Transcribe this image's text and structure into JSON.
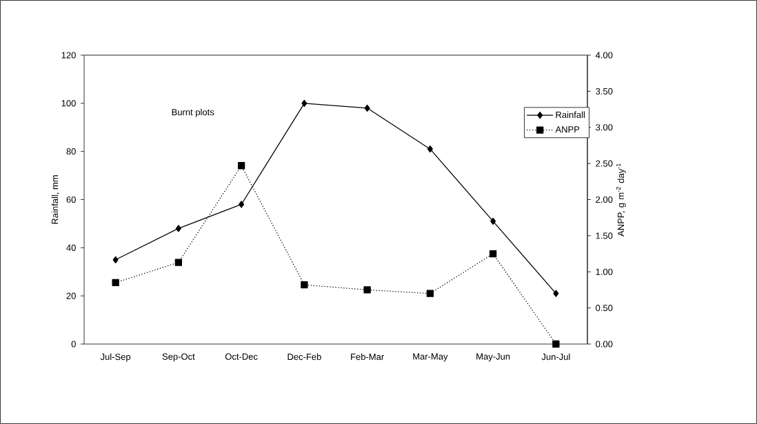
{
  "chart_data": {
    "type": "line",
    "categories": [
      "Jul-Sep",
      "Sep-Oct",
      "Oct-Dec",
      "Dec-Feb",
      "Feb-Mar",
      "Mar-May",
      "May-Jun",
      "Jun-Jul"
    ],
    "series": [
      {
        "name": "Rainfall",
        "color": "#000000",
        "marker": "diamond",
        "line_style": "solid",
        "values": [
          35,
          48,
          58,
          100,
          98,
          81,
          51,
          21
        ]
      },
      {
        "name": "ANPP",
        "color": "#000000",
        "marker": "square",
        "line_style": "dotted",
        "axis": "y2",
        "values": [
          0.85,
          1.13,
          2.47,
          0.82,
          0.75,
          0.7,
          1.25,
          0.0
        ]
      }
    ],
    "ylabel": "Rainfall, mm",
    "y2label": "ANPP, g m$^{-2}$ day$^{-1}$",
    "ylim": [
      0,
      120
    ],
    "yticks": [
      0,
      20,
      40,
      60,
      80,
      100,
      120
    ],
    "y2lim": [
      0,
      4
    ],
    "y2ticks": [
      {
        "value": 0,
        "label": "0.00"
      },
      {
        "value": 0.5,
        "label": "0.50"
      },
      {
        "value": 1,
        "label": "1.00"
      },
      {
        "value": 1.5,
        "label": "1.50"
      },
      {
        "value": 2,
        "label": "2.00"
      },
      {
        "value": 2.5,
        "label": "2.50"
      },
      {
        "value": 3,
        "label": "3.00"
      },
      {
        "value": 3.5,
        "label": "3.50"
      },
      {
        "value": 4,
        "label": "4.00"
      }
    ],
    "legend": "top right",
    "annotations": [
      "Burnt plots"
    ]
  }
}
